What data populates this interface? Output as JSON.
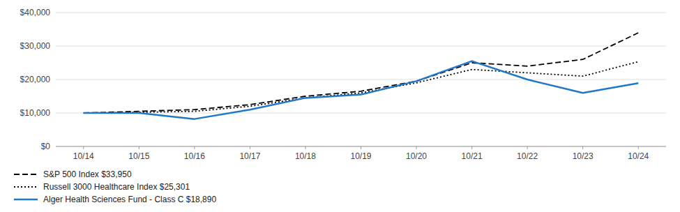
{
  "chart_data": {
    "type": "line",
    "categories": [
      "10/14",
      "10/15",
      "10/16",
      "10/17",
      "10/18",
      "10/19",
      "10/20",
      "10/21",
      "10/22",
      "10/23",
      "10/24"
    ],
    "series": [
      {
        "name": "S&P 500 Index $33,950",
        "color": "#000000",
        "line_style": "dashed",
        "values": [
          10000,
          10500,
          11000,
          12500,
          15000,
          16500,
          19500,
          25000,
          24000,
          26000,
          33950
        ]
      },
      {
        "name": "Russell 3000 Healthcare Index $25,301",
        "color": "#000000",
        "line_style": "dotted",
        "values": [
          10000,
          10200,
          10500,
          12000,
          14500,
          16000,
          19000,
          23000,
          22000,
          21000,
          25301
        ]
      },
      {
        "name": "Alger Health Sciences Fund - Class C $18,890",
        "color": "#1f78c8",
        "line_style": "solid",
        "values": [
          10000,
          10000,
          8200,
          11000,
          14500,
          15500,
          19500,
          25500,
          20000,
          16000,
          18890
        ]
      }
    ],
    "ylim": [
      0,
      40000
    ],
    "yticks": [
      {
        "value": 0,
        "label": "$0"
      },
      {
        "value": 10000,
        "label": "$10,000"
      },
      {
        "value": 20000,
        "label": "$20,000"
      },
      {
        "value": 30000,
        "label": "$30,000"
      },
      {
        "value": 40000,
        "label": "$40,000"
      }
    ],
    "grid": true,
    "legend": "bottom"
  }
}
